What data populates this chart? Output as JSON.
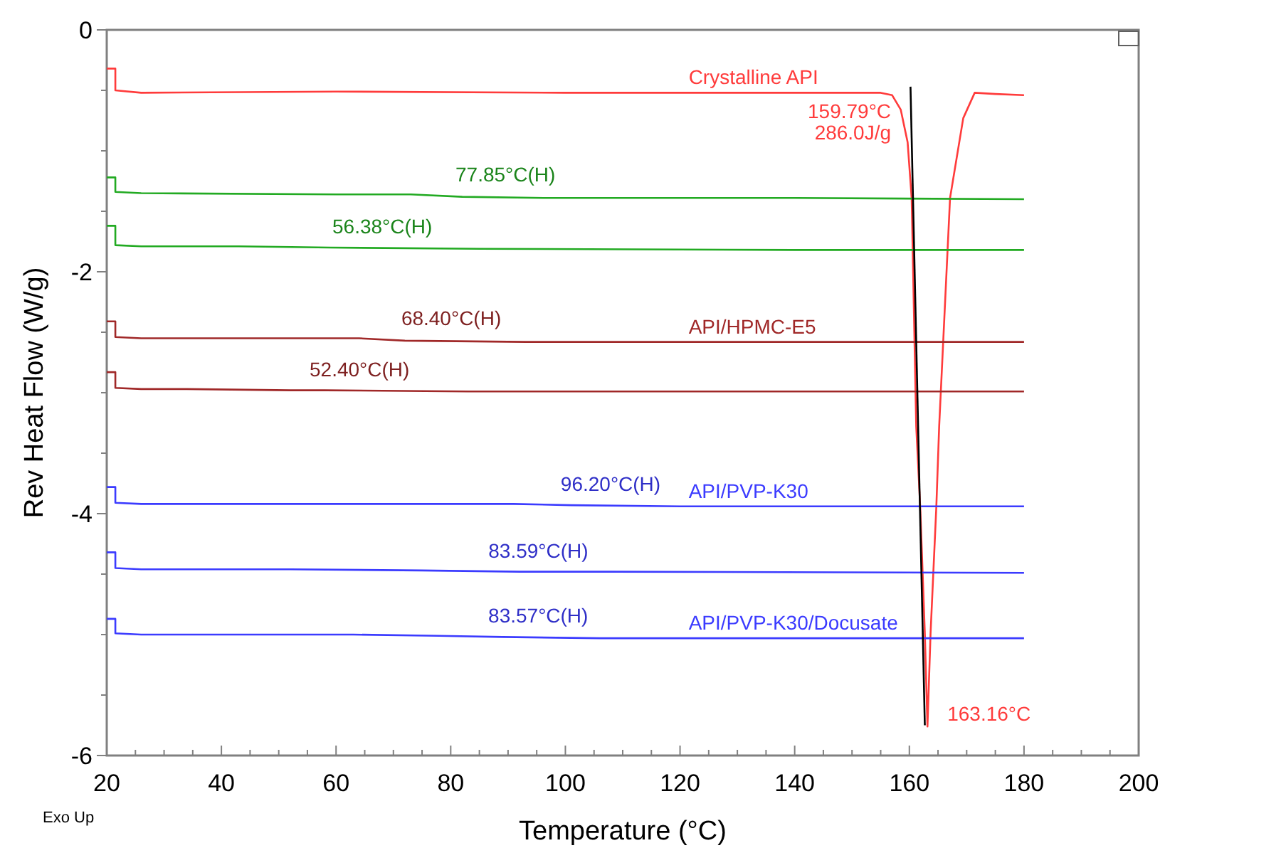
{
  "chart_data": {
    "type": "line",
    "xlabel": "Temperature (°C)",
    "ylabel": "Rev Heat Flow (W/g)",
    "xlim": [
      20,
      200
    ],
    "ylim": [
      -6,
      0
    ],
    "xticks": [
      20,
      {
        "value": 25,
        "label": null
      },
      {
        "value": 30,
        "label": null
      },
      {
        "value": 35,
        "label": null
      },
      40,
      {
        "value": 45,
        "label": null
      },
      {
        "value": 50,
        "label": null
      },
      {
        "value": 55,
        "label": null
      },
      60,
      {
        "value": 65,
        "label": null
      },
      {
        "value": 70,
        "label": null
      },
      {
        "value": 75,
        "label": null
      },
      80,
      {
        "value": 85,
        "label": null
      },
      {
        "value": 90,
        "label": null
      },
      {
        "value": 95,
        "label": null
      },
      100,
      {
        "value": 105,
        "label": null
      },
      {
        "value": 110,
        "label": null
      },
      {
        "value": 115,
        "label": null
      },
      120,
      {
        "value": 125,
        "label": null
      },
      {
        "value": 130,
        "label": null
      },
      {
        "value": 135,
        "label": null
      },
      140,
      {
        "value": 145,
        "label": null
      },
      {
        "value": 150,
        "label": null
      },
      {
        "value": 155,
        "label": null
      },
      160,
      {
        "value": 165,
        "label": null
      },
      {
        "value": 170,
        "label": null
      },
      {
        "value": 175,
        "label": null
      },
      180,
      {
        "value": 185,
        "label": null
      },
      {
        "value": 190,
        "label": null
      },
      {
        "value": 195,
        "label": null
      },
      200
    ],
    "yticks": [
      0,
      {
        "value": -0.5,
        "label": null
      },
      {
        "value": -1,
        "label": null
      },
      {
        "value": -1.5,
        "label": null
      },
      -2,
      {
        "value": -2.5,
        "label": null
      },
      {
        "value": -3,
        "label": null
      },
      {
        "value": -3.5,
        "label": null
      },
      -4,
      {
        "value": -4.5,
        "label": null
      },
      {
        "value": -5,
        "label": null
      },
      {
        "value": -5.5,
        "label": null
      },
      -6
    ],
    "grid": false,
    "line_style": "solid",
    "series": [
      {
        "name": "Crystalline API",
        "color": "#ff3b3b",
        "x": [
          20,
          21.5,
          21.5,
          26,
          60,
          100,
          140,
          155,
          157,
          158.5,
          159.7,
          160.4,
          161.2,
          161.9,
          162.7,
          163.16,
          163.7,
          164.7,
          165.2,
          167.1,
          169.4,
          171.4,
          175,
          180
        ],
        "values": [
          -0.32,
          -0.32,
          -0.5,
          -0.52,
          -0.51,
          -0.52,
          -0.52,
          -0.52,
          -0.54,
          -0.66,
          -0.93,
          -1.39,
          -3.28,
          -3.95,
          -4.99,
          -5.76,
          -4.99,
          -3.95,
          -3.28,
          -1.39,
          -0.73,
          -0.52,
          -0.53,
          -0.54
        ]
      },
      {
        "color": "#22aa22",
        "x": [
          20,
          21.5,
          21.5,
          26,
          60,
          73,
          82,
          97,
          140,
          180
        ],
        "values": [
          -1.22,
          -1.22,
          -1.34,
          -1.35,
          -1.36,
          -1.36,
          -1.38,
          -1.39,
          -1.39,
          -1.4
        ]
      },
      {
        "color": "#22aa22",
        "x": [
          20,
          21.5,
          21.5,
          26,
          43,
          59,
          85,
          140,
          180
        ],
        "values": [
          -1.62,
          -1.62,
          -1.78,
          -1.79,
          -1.79,
          -1.8,
          -1.81,
          -1.82,
          -1.82
        ]
      },
      {
        "name": "API/HPMC-E5",
        "color": "#a02828",
        "x": [
          20,
          21.5,
          21.5,
          26,
          55,
          64,
          72,
          93,
          140,
          180
        ],
        "values": [
          -2.41,
          -2.41,
          -2.54,
          -2.55,
          -2.55,
          -2.55,
          -2.57,
          -2.58,
          -2.58,
          -2.58
        ]
      },
      {
        "color": "#a02828",
        "x": [
          20,
          21.5,
          21.5,
          26,
          34,
          52,
          58,
          83,
          140,
          180
        ],
        "values": [
          -2.83,
          -2.83,
          -2.96,
          -2.97,
          -2.97,
          -2.98,
          -2.98,
          -2.99,
          -2.99,
          -2.99
        ]
      },
      {
        "name": "API/PVP-K30",
        "color": "#3b3bff",
        "x": [
          20,
          21.5,
          21.5,
          26,
          76,
          91,
          101,
          120,
          180
        ],
        "values": [
          -3.78,
          -3.78,
          -3.91,
          -3.92,
          -3.92,
          -3.92,
          -3.93,
          -3.94,
          -3.94
        ]
      },
      {
        "color": "#3b3bff",
        "x": [
          20,
          21.5,
          21.5,
          26,
          52,
          75,
          92,
          108,
          180
        ],
        "values": [
          -4.32,
          -4.32,
          -4.45,
          -4.46,
          -4.46,
          -4.47,
          -4.48,
          -4.48,
          -4.49
        ]
      },
      {
        "name": "API/PVP-K30/Docusate",
        "color": "#3b3bff",
        "x": [
          20,
          21.5,
          21.5,
          26,
          63,
          78,
          89,
          106,
          180
        ],
        "values": [
          -4.87,
          -4.87,
          -4.99,
          -5.0,
          -5.0,
          -5.01,
          -5.02,
          -5.03,
          -5.03
        ]
      },
      {
        "color": "#000000",
        "x": [
          160.2,
          162.7
        ],
        "values": [
          -0.47,
          -5.75
        ]
      }
    ],
    "annotations": [
      {
        "text": "77.85°C(H)",
        "x": 77.85,
        "y": -1.37
      },
      {
        "text": "56.38°C(H)",
        "x": 56.38,
        "y": -1.8
      },
      {
        "text": "68.40°C(H)",
        "x": 68.4,
        "y": -2.56
      },
      {
        "text": "52.40°C(H)",
        "x": 52.4,
        "y": -2.98
      },
      {
        "text": "96.20°C(H)",
        "x": 96.2,
        "y": -3.93
      },
      {
        "text": "83.59°C(H)",
        "x": 83.59,
        "y": -4.48
      },
      {
        "text": "83.57°C(H)",
        "x": 83.57,
        "y": -5.02
      },
      {
        "text": "159.79°C",
        "x": 159.79,
        "y": -0.52
      },
      {
        "text": "286.0J/g",
        "x": 159.79,
        "y": -0.52
      },
      {
        "text": "163.16°C",
        "x": 163.16,
        "y": -5.76
      },
      "Exo Up"
    ]
  }
}
